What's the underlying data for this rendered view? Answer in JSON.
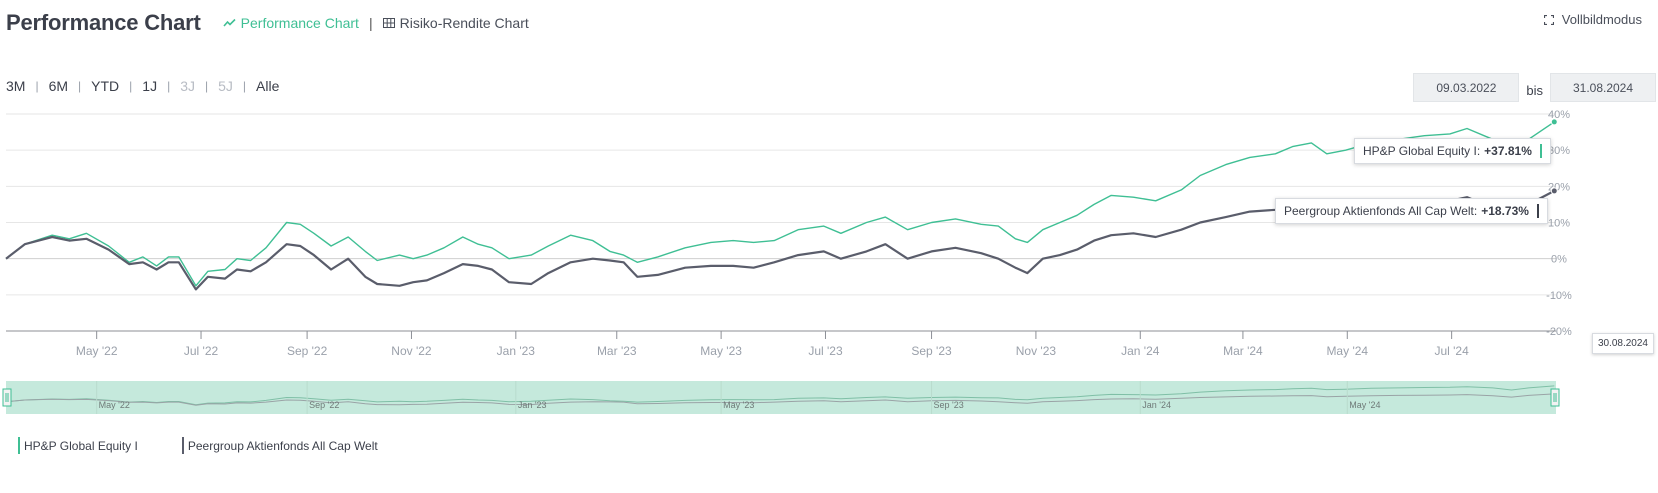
{
  "header": {
    "title": "Performance Chart",
    "tabs": [
      {
        "label": "Performance Chart",
        "active": true
      },
      {
        "label": "Risiko-Rendite Chart",
        "active": false
      }
    ],
    "fullscreen_label": "Vollbildmodus"
  },
  "range": {
    "buttons": [
      {
        "label": "3M",
        "enabled": true
      },
      {
        "label": "6M",
        "enabled": true
      },
      {
        "label": "YTD",
        "enabled": true
      },
      {
        "label": "1J",
        "enabled": true
      },
      {
        "label": "3J",
        "enabled": false
      },
      {
        "label": "5J",
        "enabled": false
      },
      {
        "label": "Alle",
        "enabled": true
      }
    ],
    "from": "09.03.2022",
    "bis": "bis",
    "to": "31.08.2024"
  },
  "colors": {
    "fund": "#3fbf94",
    "peer": "#5a5d6b",
    "navigator_fill": "#c5e9dc",
    "grid": "#e6e6e6"
  },
  "tooltips": {
    "fund_label": "HP&P Global Equity I:",
    "fund_value": "+37.81%",
    "peer_label": "Peergroup Aktienfonds All Cap Welt:",
    "peer_value": "+18.73%",
    "date": "30.08.2024"
  },
  "chart_data": {
    "type": "line",
    "x_range": [
      "2022-03-09",
      "2024-08-31"
    ],
    "ylim": [
      -20,
      40
    ],
    "y_ticks": [
      "-20%",
      "-10%",
      "0%",
      "10%",
      "20%",
      "30%",
      "40%"
    ],
    "x_ticks": [
      "May '22",
      "Jul '22",
      "Sep '22",
      "Nov '22",
      "Jan '23",
      "Mar '23",
      "May '23",
      "Jul '23",
      "Sep '23",
      "Nov '23",
      "Jan '24",
      "Mar '24",
      "May '24",
      "Jul '24"
    ],
    "navigator_ticks": [
      "May '22",
      "Sep '22",
      "Jan '23",
      "May '23",
      "Sep '23",
      "Jan '24",
      "May '24"
    ],
    "series": [
      {
        "name": "HP&P Global Equity I",
        "points": [
          [
            "2022-03-09",
            0
          ],
          [
            "2022-03-20",
            4
          ],
          [
            "2022-04-05",
            6.5
          ],
          [
            "2022-04-15",
            5.5
          ],
          [
            "2022-04-25",
            7
          ],
          [
            "2022-05-08",
            3.5
          ],
          [
            "2022-05-20",
            -1
          ],
          [
            "2022-05-28",
            0.5
          ],
          [
            "2022-06-05",
            -2
          ],
          [
            "2022-06-12",
            0.5
          ],
          [
            "2022-06-18",
            0.5
          ],
          [
            "2022-06-28",
            -7.5
          ],
          [
            "2022-07-05",
            -3.5
          ],
          [
            "2022-07-15",
            -3
          ],
          [
            "2022-07-22",
            0
          ],
          [
            "2022-07-30",
            -0.5
          ],
          [
            "2022-08-08",
            3
          ],
          [
            "2022-08-20",
            10
          ],
          [
            "2022-08-28",
            9.5
          ],
          [
            "2022-09-05",
            7
          ],
          [
            "2022-09-15",
            3.5
          ],
          [
            "2022-09-25",
            6
          ],
          [
            "2022-10-05",
            2
          ],
          [
            "2022-10-12",
            -0.5
          ],
          [
            "2022-10-25",
            1
          ],
          [
            "2022-11-02",
            0
          ],
          [
            "2022-11-10",
            1
          ],
          [
            "2022-11-20",
            3
          ],
          [
            "2022-12-01",
            6
          ],
          [
            "2022-12-10",
            4
          ],
          [
            "2022-12-18",
            3
          ],
          [
            "2022-12-28",
            0
          ],
          [
            "2023-01-10",
            1
          ],
          [
            "2023-01-20",
            3.5
          ],
          [
            "2023-02-02",
            6.5
          ],
          [
            "2023-02-15",
            5
          ],
          [
            "2023-02-25",
            2
          ],
          [
            "2023-03-05",
            1
          ],
          [
            "2023-03-13",
            -1
          ],
          [
            "2023-03-25",
            0.5
          ],
          [
            "2023-04-10",
            3
          ],
          [
            "2023-04-25",
            4.5
          ],
          [
            "2023-05-08",
            5
          ],
          [
            "2023-05-20",
            4.5
          ],
          [
            "2023-06-01",
            5
          ],
          [
            "2023-06-15",
            8
          ],
          [
            "2023-06-30",
            9
          ],
          [
            "2023-07-10",
            7
          ],
          [
            "2023-07-25",
            10
          ],
          [
            "2023-08-05",
            11.5
          ],
          [
            "2023-08-18",
            8
          ],
          [
            "2023-09-01",
            10
          ],
          [
            "2023-09-15",
            11
          ],
          [
            "2023-09-30",
            9.5
          ],
          [
            "2023-10-10",
            9
          ],
          [
            "2023-10-20",
            5.5
          ],
          [
            "2023-10-27",
            4.5
          ],
          [
            "2023-11-05",
            8
          ],
          [
            "2023-11-15",
            10
          ],
          [
            "2023-11-25",
            12
          ],
          [
            "2023-12-05",
            15
          ],
          [
            "2023-12-15",
            17.5
          ],
          [
            "2023-12-28",
            17
          ],
          [
            "2024-01-10",
            16
          ],
          [
            "2024-01-25",
            19
          ],
          [
            "2024-02-05",
            23
          ],
          [
            "2024-02-20",
            26
          ],
          [
            "2024-03-05",
            28
          ],
          [
            "2024-03-20",
            29
          ],
          [
            "2024-03-30",
            31
          ],
          [
            "2024-04-10",
            32
          ],
          [
            "2024-04-19",
            29
          ],
          [
            "2024-04-30",
            30
          ],
          [
            "2024-05-15",
            32
          ],
          [
            "2024-05-31",
            33
          ],
          [
            "2024-06-15",
            34
          ],
          [
            "2024-06-30",
            34.5
          ],
          [
            "2024-07-10",
            36
          ],
          [
            "2024-07-25",
            33
          ],
          [
            "2024-08-05",
            28
          ],
          [
            "2024-08-15",
            33
          ],
          [
            "2024-08-30",
            37.81
          ]
        ]
      },
      {
        "name": "Peergroup Aktienfonds All Cap Welt",
        "points": [
          [
            "2022-03-09",
            0
          ],
          [
            "2022-03-20",
            4
          ],
          [
            "2022-04-05",
            6
          ],
          [
            "2022-04-15",
            5
          ],
          [
            "2022-04-25",
            5.5
          ],
          [
            "2022-05-08",
            2.5
          ],
          [
            "2022-05-20",
            -1.5
          ],
          [
            "2022-05-28",
            -1
          ],
          [
            "2022-06-05",
            -3
          ],
          [
            "2022-06-12",
            -1
          ],
          [
            "2022-06-18",
            -1
          ],
          [
            "2022-06-28",
            -8.5
          ],
          [
            "2022-07-05",
            -5
          ],
          [
            "2022-07-15",
            -5.5
          ],
          [
            "2022-07-22",
            -3
          ],
          [
            "2022-07-30",
            -3.5
          ],
          [
            "2022-08-08",
            -1
          ],
          [
            "2022-08-20",
            4
          ],
          [
            "2022-08-28",
            3.5
          ],
          [
            "2022-09-05",
            1
          ],
          [
            "2022-09-15",
            -3
          ],
          [
            "2022-09-25",
            0
          ],
          [
            "2022-10-05",
            -5
          ],
          [
            "2022-10-12",
            -7
          ],
          [
            "2022-10-25",
            -7.5
          ],
          [
            "2022-11-02",
            -6.5
          ],
          [
            "2022-11-10",
            -6
          ],
          [
            "2022-11-20",
            -4
          ],
          [
            "2022-12-01",
            -1.5
          ],
          [
            "2022-12-10",
            -2
          ],
          [
            "2022-12-18",
            -3
          ],
          [
            "2022-12-28",
            -6.5
          ],
          [
            "2023-01-10",
            -7
          ],
          [
            "2023-01-20",
            -4
          ],
          [
            "2023-02-02",
            -1
          ],
          [
            "2023-02-15",
            0
          ],
          [
            "2023-02-25",
            -0.5
          ],
          [
            "2023-03-05",
            -1
          ],
          [
            "2023-03-13",
            -5
          ],
          [
            "2023-03-25",
            -4.5
          ],
          [
            "2023-04-10",
            -2.5
          ],
          [
            "2023-04-25",
            -2
          ],
          [
            "2023-05-08",
            -2
          ],
          [
            "2023-05-20",
            -2.5
          ],
          [
            "2023-06-01",
            -1
          ],
          [
            "2023-06-15",
            1
          ],
          [
            "2023-06-30",
            2
          ],
          [
            "2023-07-10",
            0
          ],
          [
            "2023-07-25",
            2
          ],
          [
            "2023-08-05",
            4
          ],
          [
            "2023-08-18",
            0
          ],
          [
            "2023-09-01",
            2
          ],
          [
            "2023-09-15",
            3
          ],
          [
            "2023-09-30",
            1.5
          ],
          [
            "2023-10-10",
            0
          ],
          [
            "2023-10-20",
            -2.5
          ],
          [
            "2023-10-27",
            -4
          ],
          [
            "2023-11-05",
            0
          ],
          [
            "2023-11-15",
            1
          ],
          [
            "2023-11-25",
            2.5
          ],
          [
            "2023-12-05",
            5
          ],
          [
            "2023-12-15",
            6.5
          ],
          [
            "2023-12-28",
            7
          ],
          [
            "2024-01-10",
            6
          ],
          [
            "2024-01-25",
            8
          ],
          [
            "2024-02-05",
            10
          ],
          [
            "2024-02-20",
            11.5
          ],
          [
            "2024-03-05",
            13
          ],
          [
            "2024-03-20",
            13.5
          ],
          [
            "2024-03-30",
            14
          ],
          [
            "2024-04-10",
            14.5
          ],
          [
            "2024-04-19",
            12
          ],
          [
            "2024-04-30",
            13
          ],
          [
            "2024-05-15",
            14
          ],
          [
            "2024-05-31",
            15
          ],
          [
            "2024-06-15",
            15.5
          ],
          [
            "2024-06-30",
            16
          ],
          [
            "2024-07-10",
            17
          ],
          [
            "2024-07-25",
            14
          ],
          [
            "2024-08-05",
            11
          ],
          [
            "2024-08-15",
            15
          ],
          [
            "2024-08-30",
            18.73
          ]
        ]
      }
    ],
    "grid": true,
    "legend_position": "bottom-left"
  }
}
